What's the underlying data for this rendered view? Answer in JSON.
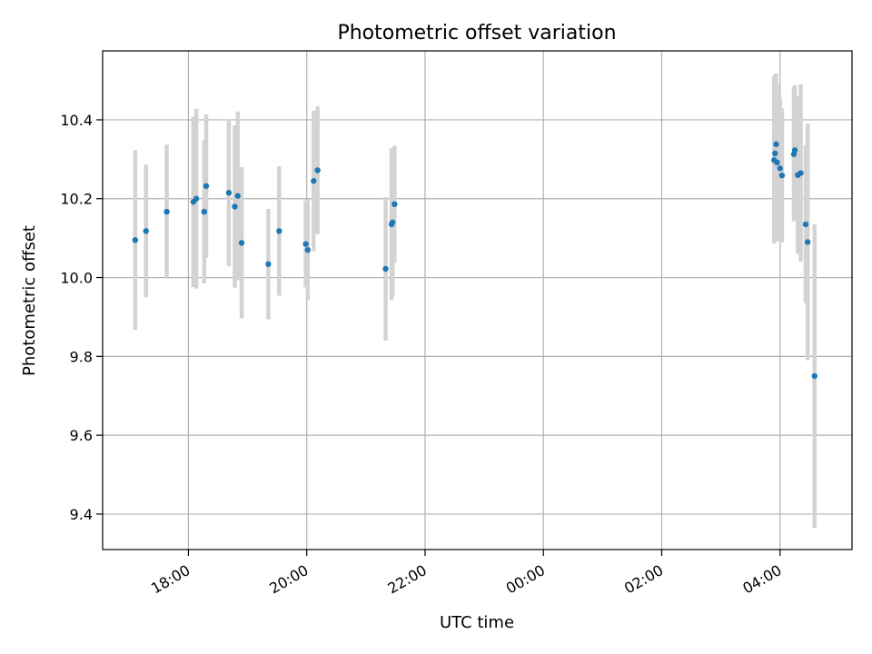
{
  "chart_data": {
    "type": "scatter",
    "title": "Photometric offset variation",
    "xlabel": "UTC time",
    "ylabel": "Photometric offset",
    "x_axis_type": "time",
    "xlim": [
      "16:33",
      "05:13"
    ],
    "ylim": [
      9.31,
      10.575
    ],
    "grid": true,
    "legend": "none",
    "x_ticks": [
      {
        "time": "18:00",
        "label": "18:00"
      },
      {
        "time": "20:00",
        "label": "20:00"
      },
      {
        "time": "22:00",
        "label": "22:00"
      },
      {
        "time": "00:00",
        "label": "00:00"
      },
      {
        "time": "02:00",
        "label": "02:00"
      },
      {
        "time": "04:00",
        "label": "04:00"
      }
    ],
    "y_ticks": [
      {
        "value": 9.4,
        "label": "9.4"
      },
      {
        "value": 9.6,
        "label": "9.6"
      },
      {
        "value": 9.8,
        "label": "9.8"
      },
      {
        "value": 10.0,
        "label": "10.0"
      },
      {
        "value": 10.2,
        "label": "10.2"
      },
      {
        "value": 10.4,
        "label": "10.4"
      }
    ],
    "colors": {
      "points": "#1f77b4",
      "errorbars": "#d3d3d3",
      "grid": "#b0b0b0",
      "axes": "#000000"
    },
    "points": [
      {
        "time": "17:06",
        "y": 10.095,
        "err": 0.228
      },
      {
        "time": "17:17",
        "y": 10.118,
        "err": 0.168
      },
      {
        "time": "17:38",
        "y": 10.167,
        "err": 0.17
      },
      {
        "time": "18:05",
        "y": 10.192,
        "err": 0.216
      },
      {
        "time": "18:08",
        "y": 10.2,
        "err": 0.228
      },
      {
        "time": "18:16",
        "y": 10.167,
        "err": 0.182
      },
      {
        "time": "18:18",
        "y": 10.232,
        "err": 0.182
      },
      {
        "time": "18:41",
        "y": 10.215,
        "err": 0.186
      },
      {
        "time": "18:47",
        "y": 10.18,
        "err": 0.206
      },
      {
        "time": "18:50",
        "y": 10.207,
        "err": 0.214
      },
      {
        "time": "18:54",
        "y": 10.088,
        "err": 0.192
      },
      {
        "time": "19:21",
        "y": 10.034,
        "err": 0.14
      },
      {
        "time": "19:32",
        "y": 10.118,
        "err": 0.164
      },
      {
        "time": "19:59",
        "y": 10.085,
        "err": 0.11
      },
      {
        "time": "20:01",
        "y": 10.07,
        "err": 0.128
      },
      {
        "time": "20:07",
        "y": 10.245,
        "err": 0.178
      },
      {
        "time": "20:11",
        "y": 10.272,
        "err": 0.162
      },
      {
        "time": "21:20",
        "y": 10.022,
        "err": 0.182
      },
      {
        "time": "21:26",
        "y": 10.135,
        "err": 0.192
      },
      {
        "time": "21:27",
        "y": 10.14,
        "err": 0.188
      },
      {
        "time": "21:29",
        "y": 10.186,
        "err": 0.148
      },
      {
        "time": "03:54",
        "y": 10.298,
        "err": 0.212
      },
      {
        "time": "03:55",
        "y": 10.315,
        "err": 0.2
      },
      {
        "time": "03:56",
        "y": 10.338,
        "err": 0.18
      },
      {
        "time": "03:57",
        "y": 10.292,
        "err": 0.2
      },
      {
        "time": "04:00",
        "y": 10.277,
        "err": 0.18
      },
      {
        "time": "04:02",
        "y": 10.259,
        "err": 0.17
      },
      {
        "time": "04:14",
        "y": 10.313,
        "err": 0.17
      },
      {
        "time": "04:15",
        "y": 10.323,
        "err": 0.165
      },
      {
        "time": "04:18",
        "y": 10.26,
        "err": 0.2
      },
      {
        "time": "04:21",
        "y": 10.265,
        "err": 0.225
      },
      {
        "time": "04:26",
        "y": 10.135,
        "err": 0.2
      },
      {
        "time": "04:28",
        "y": 10.09,
        "err": 0.3
      },
      {
        "time": "04:35",
        "y": 9.75,
        "err": 0.385
      }
    ]
  }
}
